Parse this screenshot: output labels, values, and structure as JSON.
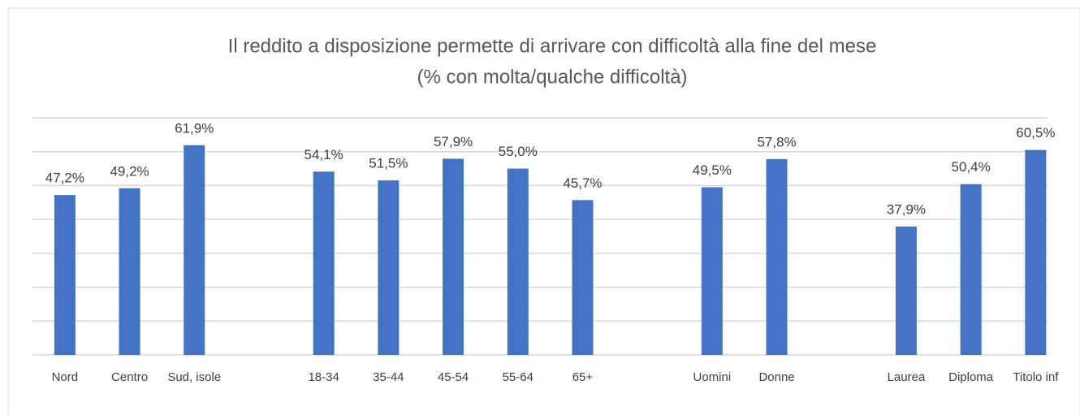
{
  "chart_data": {
    "type": "bar",
    "title": "Il reddito a disposizione permette di arrivare con difficoltà alla fine del mese",
    "subtitle": "(% con molta/qualche difficoltà)",
    "categories": [
      "Nord",
      "Centro",
      "Sud, isole",
      null,
      "18-34",
      "35-44",
      "45-54",
      "55-64",
      "65+",
      null,
      "Uomini",
      "Donne",
      null,
      "Laurea",
      "Diploma",
      "Titolo inf"
    ],
    "values": [
      47.2,
      49.2,
      61.9,
      null,
      54.1,
      51.5,
      57.9,
      55.0,
      45.7,
      null,
      49.5,
      57.8,
      null,
      37.9,
      50.4,
      60.5
    ],
    "value_labels": [
      "47,2%",
      "49,2%",
      "61,9%",
      null,
      "54,1%",
      "51,5%",
      "57,9%",
      "55,0%",
      "45,7%",
      null,
      "49,5%",
      "57,8%",
      null,
      "37,9%",
      "50,4%",
      "60,5%"
    ],
    "color": "#4472c4",
    "ylim": [
      0,
      70
    ],
    "yticks": [
      0,
      10,
      20,
      30,
      40,
      50,
      60,
      70
    ],
    "grid": true
  }
}
